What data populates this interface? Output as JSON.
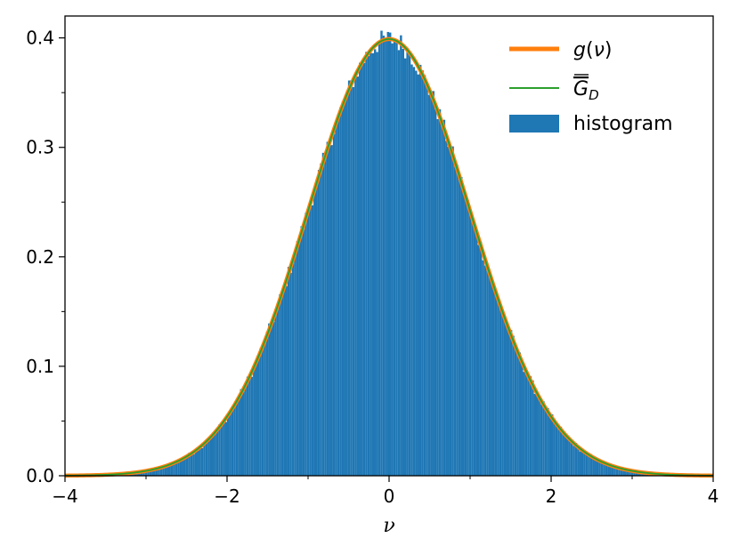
{
  "chart_data": {
    "type": "bar",
    "title": "",
    "xlabel": "ν",
    "ylabel": "",
    "xlim": [
      -4,
      4
    ],
    "ylim": [
      0,
      0.42
    ],
    "xticks": [
      -4,
      -2,
      0,
      2,
      4
    ],
    "xtick_labels": [
      "−4",
      "−2",
      "0",
      "2",
      "4"
    ],
    "yticks": [
      0.0,
      0.1,
      0.2,
      0.3,
      0.4
    ],
    "ytick_labels": [
      "0.0",
      "0.1",
      "0.2",
      "0.3",
      "0.4"
    ],
    "grid": false,
    "legend_position": "top-right",
    "legend": [
      {
        "label": "g(ν)",
        "color": "#ff7f0e"
      },
      {
        "label": "G_D",
        "color": "#2ca02c"
      },
      {
        "label": "histogram",
        "color": "#1f77b4"
      }
    ],
    "histogram": {
      "name": "histogram",
      "color": "#1f77b4",
      "bin_range": [
        -4,
        4
      ],
      "bin_count": 300,
      "shape": "standard normal density (mean 0, sd 1)",
      "peak": 0.4
    },
    "series": [
      {
        "name": "g(ν)",
        "color": "#ff7f0e",
        "function": "standard normal pdf",
        "peak": 0.4
      },
      {
        "name": "G_D",
        "color": "#2ca02c",
        "function": "standard normal pdf",
        "peak": 0.4
      }
    ]
  }
}
